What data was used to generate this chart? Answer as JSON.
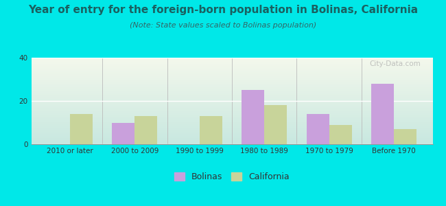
{
  "title": "Year of entry for the foreign-born population in Bolinas, California",
  "subtitle": "(Note: State values scaled to Bolinas population)",
  "categories": [
    "2010 or later",
    "2000 to 2009",
    "1990 to 1999",
    "1980 to 1989",
    "1970 to 1979",
    "Before 1970"
  ],
  "bolinas": [
    0,
    10,
    0,
    25,
    14,
    28
  ],
  "california": [
    14,
    13,
    13,
    18,
    9,
    7
  ],
  "bolinas_color": "#c9a0dc",
  "california_color": "#c8d49a",
  "background_outer": "#00e8e8",
  "background_inner_topleft": "#f4f8ec",
  "background_inner_bottomright": "#c8e8e0",
  "ylim": [
    0,
    40
  ],
  "yticks": [
    0,
    20,
    40
  ],
  "bar_width": 0.35,
  "title_fontsize": 11,
  "subtitle_fontsize": 8,
  "legend_fontsize": 9,
  "tick_fontsize": 7.5,
  "title_color": "#1a6060",
  "subtitle_color": "#336666",
  "watermark": "City-Data.com"
}
